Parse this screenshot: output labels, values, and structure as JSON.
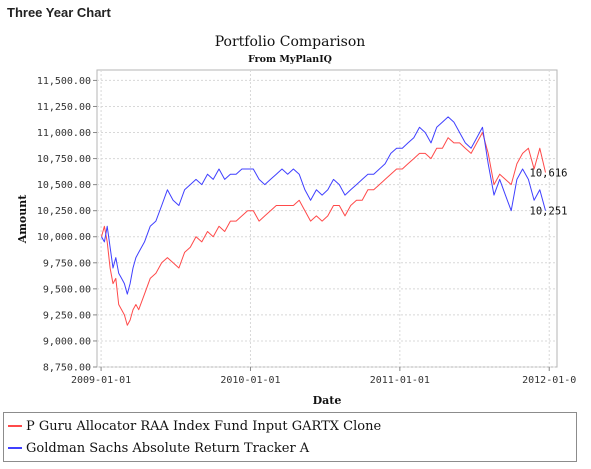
{
  "header": {
    "title": "Three Year Chart"
  },
  "chart_data": {
    "type": "line",
    "title": "Portfolio Comparison",
    "subtitle": "From MyPlanIQ",
    "xlabel": "Date",
    "ylabel": "Amount",
    "xlim": [
      "2008-12-22",
      "2012-01-20"
    ],
    "ylim": [
      8750,
      11600
    ],
    "x_ticks": [
      "2009-01-01",
      "2010-01-01",
      "2011-01-01",
      "2012-01-0"
    ],
    "y_ticks": [
      "8,750.00",
      "9,000.00",
      "9,250.00",
      "9,500.00",
      "9,750.00",
      "10,000.00",
      "10,250.00",
      "10,500.00",
      "10,750.00",
      "11,000.00",
      "11,250.00",
      "11,500.00"
    ],
    "grid": true,
    "legend_position": "bottom",
    "series": [
      {
        "name": "P Guru Allocator RAA Index Fund Input GARTX Clone",
        "color": "#ff4a4a",
        "end_label": "10,616",
        "points": [
          [
            "2009-01-02",
            10000
          ],
          [
            "2009-01-09",
            10100
          ],
          [
            "2009-01-16",
            9950
          ],
          [
            "2009-01-23",
            9700
          ],
          [
            "2009-01-30",
            9550
          ],
          [
            "2009-02-06",
            9600
          ],
          [
            "2009-02-13",
            9350
          ],
          [
            "2009-02-20",
            9300
          ],
          [
            "2009-02-27",
            9250
          ],
          [
            "2009-03-06",
            9150
          ],
          [
            "2009-03-13",
            9200
          ],
          [
            "2009-03-20",
            9300
          ],
          [
            "2009-03-27",
            9350
          ],
          [
            "2009-04-03",
            9300
          ],
          [
            "2009-04-17",
            9450
          ],
          [
            "2009-05-01",
            9600
          ],
          [
            "2009-05-15",
            9650
          ],
          [
            "2009-05-29",
            9750
          ],
          [
            "2009-06-12",
            9800
          ],
          [
            "2009-06-26",
            9750
          ],
          [
            "2009-07-10",
            9700
          ],
          [
            "2009-07-24",
            9850
          ],
          [
            "2009-08-07",
            9900
          ],
          [
            "2009-08-21",
            10000
          ],
          [
            "2009-09-04",
            9950
          ],
          [
            "2009-09-18",
            10050
          ],
          [
            "2009-10-02",
            10000
          ],
          [
            "2009-10-16",
            10100
          ],
          [
            "2009-10-30",
            10050
          ],
          [
            "2009-11-13",
            10150
          ],
          [
            "2009-11-27",
            10150
          ],
          [
            "2009-12-11",
            10200
          ],
          [
            "2009-12-25",
            10250
          ],
          [
            "2010-01-08",
            10250
          ],
          [
            "2010-01-22",
            10150
          ],
          [
            "2010-02-05",
            10200
          ],
          [
            "2010-02-19",
            10250
          ],
          [
            "2010-03-05",
            10300
          ],
          [
            "2010-03-19",
            10300
          ],
          [
            "2010-04-02",
            10300
          ],
          [
            "2010-04-16",
            10300
          ],
          [
            "2010-04-30",
            10350
          ],
          [
            "2010-05-14",
            10250
          ],
          [
            "2010-05-28",
            10150
          ],
          [
            "2010-06-11",
            10200
          ],
          [
            "2010-06-25",
            10150
          ],
          [
            "2010-07-09",
            10200
          ],
          [
            "2010-07-23",
            10300
          ],
          [
            "2010-08-06",
            10300
          ],
          [
            "2010-08-20",
            10200
          ],
          [
            "2010-09-03",
            10300
          ],
          [
            "2010-09-17",
            10350
          ],
          [
            "2010-10-01",
            10350
          ],
          [
            "2010-10-15",
            10450
          ],
          [
            "2010-10-29",
            10450
          ],
          [
            "2010-11-12",
            10500
          ],
          [
            "2010-11-26",
            10550
          ],
          [
            "2010-12-10",
            10600
          ],
          [
            "2010-12-24",
            10650
          ],
          [
            "2011-01-07",
            10650
          ],
          [
            "2011-01-21",
            10700
          ],
          [
            "2011-02-04",
            10750
          ],
          [
            "2011-02-18",
            10800
          ],
          [
            "2011-03-04",
            10800
          ],
          [
            "2011-03-18",
            10750
          ],
          [
            "2011-04-01",
            10850
          ],
          [
            "2011-04-15",
            10850
          ],
          [
            "2011-04-29",
            10950
          ],
          [
            "2011-05-13",
            10900
          ],
          [
            "2011-05-27",
            10900
          ],
          [
            "2011-06-10",
            10850
          ],
          [
            "2011-06-24",
            10800
          ],
          [
            "2011-07-08",
            10900
          ],
          [
            "2011-07-22",
            11000
          ],
          [
            "2011-08-05",
            10800
          ],
          [
            "2011-08-19",
            10500
          ],
          [
            "2011-09-02",
            10600
          ],
          [
            "2011-09-16",
            10550
          ],
          [
            "2011-09-30",
            10500
          ],
          [
            "2011-10-14",
            10700
          ],
          [
            "2011-10-28",
            10800
          ],
          [
            "2011-11-11",
            10850
          ],
          [
            "2011-11-25",
            10650
          ],
          [
            "2011-12-09",
            10850
          ],
          [
            "2011-12-23",
            10616
          ]
        ]
      },
      {
        "name": "Goldman Sachs Absolute Return Tracker A",
        "color": "#4040ff",
        "end_label": "10,251",
        "points": [
          [
            "2009-01-02",
            10000
          ],
          [
            "2009-01-09",
            9950
          ],
          [
            "2009-01-16",
            10100
          ],
          [
            "2009-01-23",
            9900
          ],
          [
            "2009-01-30",
            9700
          ],
          [
            "2009-02-06",
            9800
          ],
          [
            "2009-02-13",
            9650
          ],
          [
            "2009-02-20",
            9600
          ],
          [
            "2009-02-27",
            9550
          ],
          [
            "2009-03-06",
            9450
          ],
          [
            "2009-03-13",
            9550
          ],
          [
            "2009-03-20",
            9700
          ],
          [
            "2009-03-27",
            9800
          ],
          [
            "2009-04-03",
            9850
          ],
          [
            "2009-04-17",
            9950
          ],
          [
            "2009-05-01",
            10100
          ],
          [
            "2009-05-15",
            10150
          ],
          [
            "2009-05-29",
            10300
          ],
          [
            "2009-06-12",
            10450
          ],
          [
            "2009-06-26",
            10350
          ],
          [
            "2009-07-10",
            10300
          ],
          [
            "2009-07-24",
            10450
          ],
          [
            "2009-08-07",
            10500
          ],
          [
            "2009-08-21",
            10550
          ],
          [
            "2009-09-04",
            10500
          ],
          [
            "2009-09-18",
            10600
          ],
          [
            "2009-10-02",
            10550
          ],
          [
            "2009-10-16",
            10650
          ],
          [
            "2009-10-30",
            10550
          ],
          [
            "2009-11-13",
            10600
          ],
          [
            "2009-11-27",
            10600
          ],
          [
            "2009-12-11",
            10650
          ],
          [
            "2009-12-25",
            10650
          ],
          [
            "2010-01-08",
            10650
          ],
          [
            "2010-01-22",
            10550
          ],
          [
            "2010-02-05",
            10500
          ],
          [
            "2010-02-19",
            10550
          ],
          [
            "2010-03-05",
            10600
          ],
          [
            "2010-03-19",
            10650
          ],
          [
            "2010-04-02",
            10600
          ],
          [
            "2010-04-16",
            10650
          ],
          [
            "2010-04-30",
            10600
          ],
          [
            "2010-05-14",
            10450
          ],
          [
            "2010-05-28",
            10350
          ],
          [
            "2010-06-11",
            10450
          ],
          [
            "2010-06-25",
            10400
          ],
          [
            "2010-07-09",
            10450
          ],
          [
            "2010-07-23",
            10550
          ],
          [
            "2010-08-06",
            10500
          ],
          [
            "2010-08-20",
            10400
          ],
          [
            "2010-09-03",
            10450
          ],
          [
            "2010-09-17",
            10500
          ],
          [
            "2010-10-01",
            10550
          ],
          [
            "2010-10-15",
            10600
          ],
          [
            "2010-10-29",
            10600
          ],
          [
            "2010-11-12",
            10650
          ],
          [
            "2010-11-26",
            10700
          ],
          [
            "2010-12-10",
            10800
          ],
          [
            "2010-12-24",
            10850
          ],
          [
            "2011-01-07",
            10850
          ],
          [
            "2011-01-21",
            10900
          ],
          [
            "2011-02-04",
            10950
          ],
          [
            "2011-02-18",
            11050
          ],
          [
            "2011-03-04",
            11000
          ],
          [
            "2011-03-18",
            10900
          ],
          [
            "2011-04-01",
            11050
          ],
          [
            "2011-04-15",
            11100
          ],
          [
            "2011-04-29",
            11150
          ],
          [
            "2011-05-13",
            11100
          ],
          [
            "2011-05-27",
            11000
          ],
          [
            "2011-06-10",
            10900
          ],
          [
            "2011-06-24",
            10850
          ],
          [
            "2011-07-08",
            10950
          ],
          [
            "2011-07-22",
            11050
          ],
          [
            "2011-08-05",
            10700
          ],
          [
            "2011-08-19",
            10400
          ],
          [
            "2011-09-02",
            10550
          ],
          [
            "2011-09-16",
            10400
          ],
          [
            "2011-09-30",
            10250
          ],
          [
            "2011-10-14",
            10550
          ],
          [
            "2011-10-28",
            10650
          ],
          [
            "2011-11-11",
            10550
          ],
          [
            "2011-11-25",
            10350
          ],
          [
            "2011-12-09",
            10450
          ],
          [
            "2011-12-23",
            10251
          ]
        ]
      }
    ]
  }
}
